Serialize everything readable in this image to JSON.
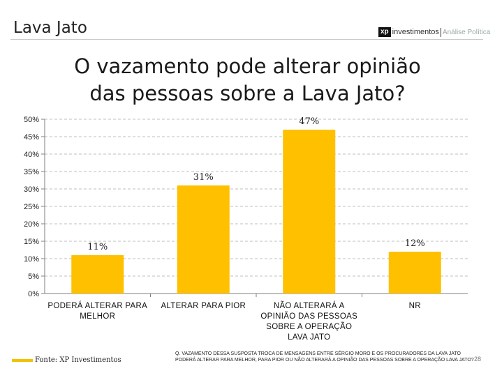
{
  "header": {
    "section_title": "Lava Jato",
    "logo_mark": "xp",
    "logo_brand": "investimentos",
    "logo_sub": "Análise Política"
  },
  "title_lines": [
    "O vazamento pode alterar opinião",
    "das pessoas sobre a Lava Jato?"
  ],
  "colors": {
    "bar": "#FFC000",
    "grid": "#BFBFBF",
    "axis": "#7F7F7F"
  },
  "chart_data": {
    "type": "bar",
    "categories": [
      [
        "PODERÁ ALTERAR PARA",
        "MELHOR"
      ],
      [
        "ALTERAR PARA PIOR"
      ],
      [
        "NÃO ALTERARÁ A",
        "OPINIÃO DAS PESSOAS",
        "SOBRE A OPERAÇÃO",
        "LAVA JATO"
      ],
      [
        "NR"
      ]
    ],
    "values": [
      11,
      31,
      47,
      12
    ],
    "data_labels": [
      "11%",
      "31%",
      "47%",
      "12%"
    ],
    "ylim": [
      0,
      50
    ],
    "yticks": [
      "0%",
      "5%",
      "10%",
      "15%",
      "20%",
      "25%",
      "30%",
      "35%",
      "40%",
      "45%",
      "50%"
    ],
    "grid": "horizontal dashed",
    "xlabel": "",
    "ylabel": ""
  },
  "legend": {
    "text": "Fonte: XP Investimentos"
  },
  "footnote_lines": [
    "Q. VAZAMENTO DESSA SUSPOSTA TROCA DE MENSAGENS ENTRE SÉRGIO MORO E OS PROCURADORES DA LAVA JATO",
    "PODERÁ ALTERAR PARA MELHOR, PARA PIOR OU NÃO ALTERARÁ A OPINIÃO DAS PESSOAS SOBRE A OPERAÇÃO LAVA JATO?"
  ],
  "page_number": "28"
}
